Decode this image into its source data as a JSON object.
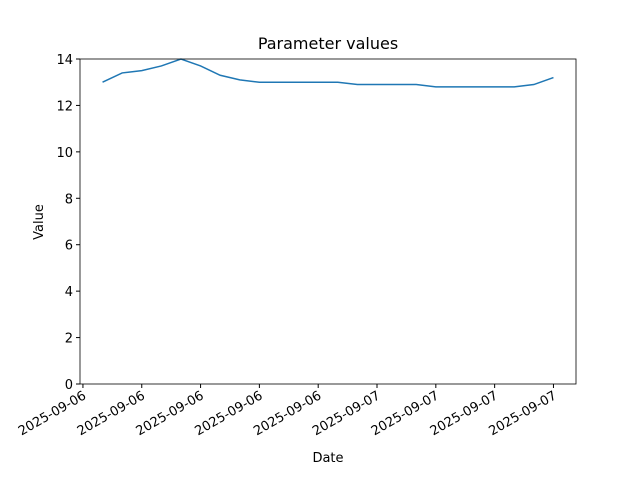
{
  "chart_data": {
    "type": "line",
    "title": "Parameter values",
    "x_label": "Date",
    "y_label": "Value",
    "x": [
      "2025-09-06T10:00",
      "2025-09-06T11:00",
      "2025-09-06T12:00",
      "2025-09-06T13:00",
      "2025-09-06T14:00",
      "2025-09-06T15:00",
      "2025-09-06T16:00",
      "2025-09-06T17:00",
      "2025-09-06T18:00",
      "2025-09-06T19:00",
      "2025-09-06T20:00",
      "2025-09-06T21:00",
      "2025-09-06T22:00",
      "2025-09-06T23:00",
      "2025-09-07T00:00",
      "2025-09-07T01:00",
      "2025-09-07T02:00",
      "2025-09-07T03:00",
      "2025-09-07T04:00",
      "2025-09-07T05:00",
      "2025-09-07T06:00",
      "2025-09-07T07:00",
      "2025-09-07T08:00",
      "2025-09-07T09:00"
    ],
    "values": [
      13.0,
      13.4,
      13.5,
      13.7,
      14.0,
      13.7,
      13.3,
      13.1,
      13.0,
      13.0,
      13.0,
      13.0,
      13.0,
      12.9,
      12.9,
      12.9,
      12.9,
      12.8,
      12.8,
      12.8,
      12.8,
      12.8,
      12.9,
      13.2
    ],
    "color": "#1f77b4",
    "xlim": [
      "2025-09-06T08:51",
      "2025-09-07T10:09"
    ],
    "xticks": [
      {
        "value": "2025-09-06T09:00",
        "label": "2025-09-06"
      },
      {
        "value": "2025-09-06T12:00",
        "label": "2025-09-06"
      },
      {
        "value": "2025-09-06T15:00",
        "label": "2025-09-06"
      },
      {
        "value": "2025-09-06T18:00",
        "label": "2025-09-06"
      },
      {
        "value": "2025-09-06T21:00",
        "label": "2025-09-06"
      },
      {
        "value": "2025-09-07T00:00",
        "label": "2025-09-07"
      },
      {
        "value": "2025-09-07T03:00",
        "label": "2025-09-07"
      },
      {
        "value": "2025-09-07T06:00",
        "label": "2025-09-07"
      },
      {
        "value": "2025-09-07T09:00",
        "label": "2025-09-07"
      }
    ],
    "ylim": [
      0,
      14
    ],
    "yticks": [
      0,
      2,
      4,
      6,
      8,
      10,
      12,
      14
    ]
  }
}
